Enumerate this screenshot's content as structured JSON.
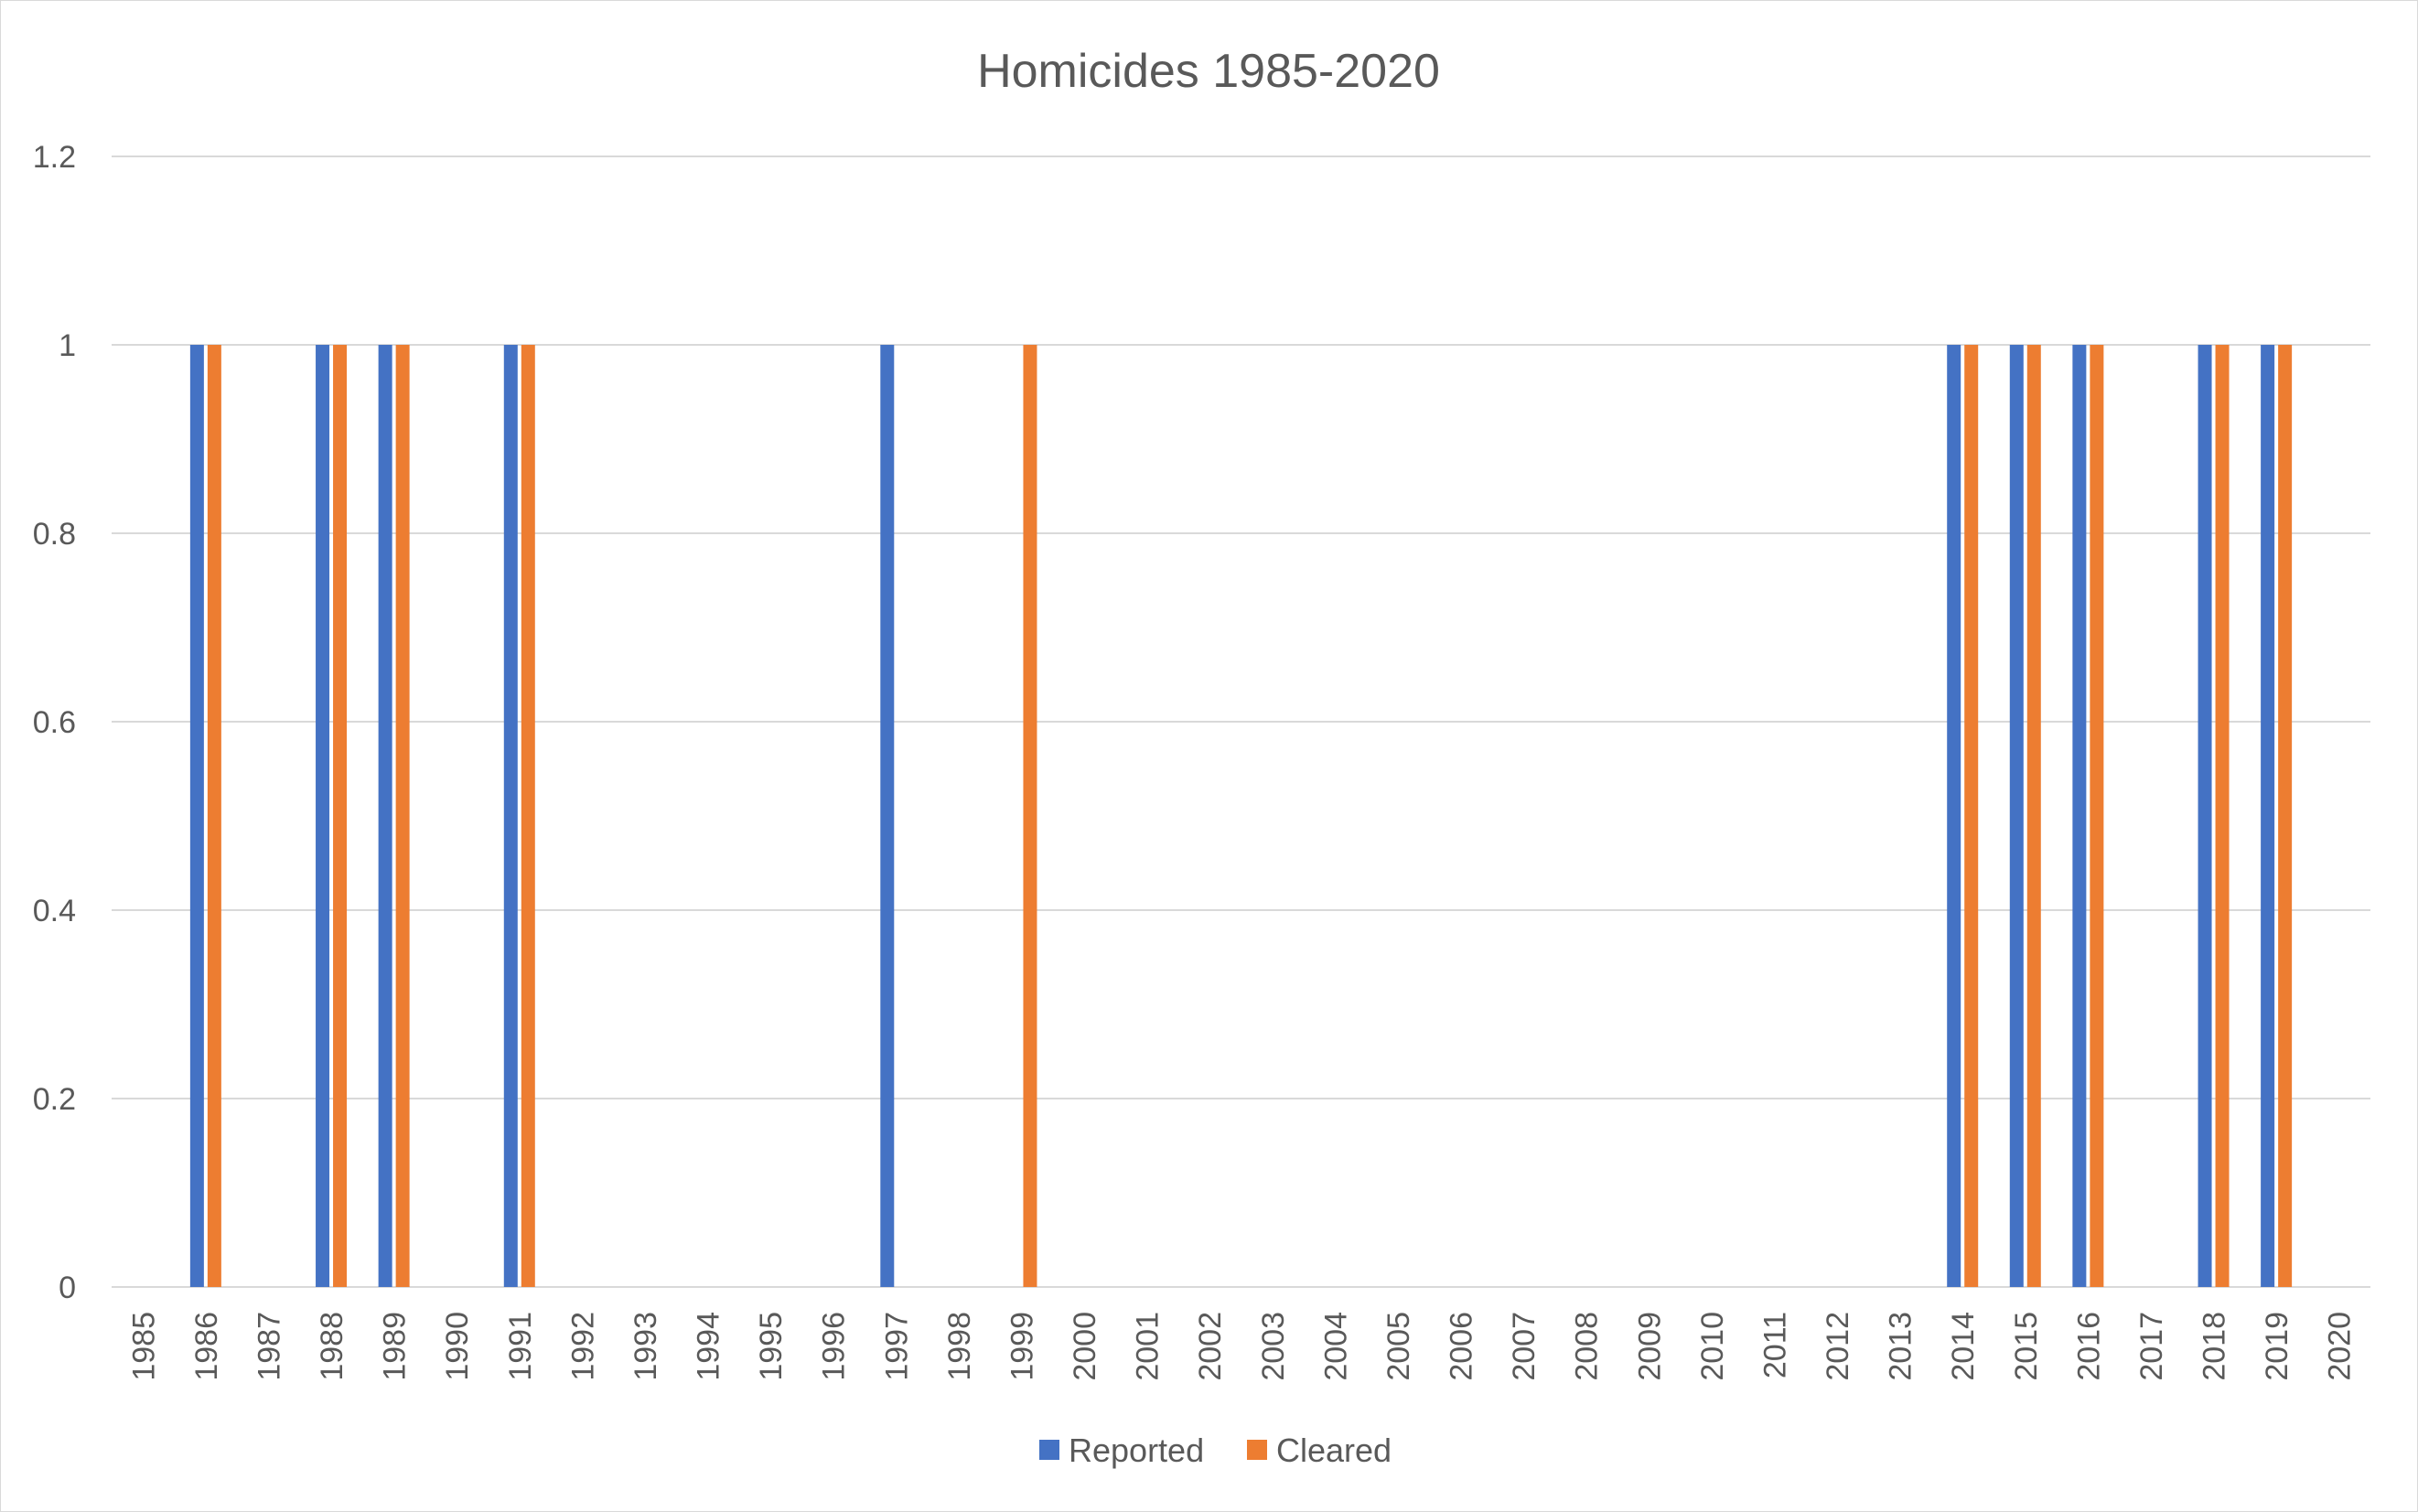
{
  "chart_data": {
    "type": "bar",
    "title": "Homicides 1985-2020",
    "xlabel": "",
    "ylabel": "",
    "categories": [
      "1985",
      "1986",
      "1987",
      "1988",
      "1989",
      "1990",
      "1991",
      "1992",
      "1993",
      "1994",
      "1995",
      "1996",
      "1997",
      "1998",
      "1999",
      "2000",
      "2001",
      "2002",
      "2003",
      "2004",
      "2005",
      "2006",
      "2007",
      "2008",
      "2009",
      "2010",
      "2011",
      "2012",
      "2013",
      "2014",
      "2015",
      "2016",
      "2017",
      "2018",
      "2019",
      "2020"
    ],
    "series": [
      {
        "name": "Reported",
        "color": "#4472C4",
        "values": [
          0,
          1,
          0,
          1,
          1,
          0,
          1,
          0,
          0,
          0,
          0,
          0,
          1,
          0,
          0,
          0,
          0,
          0,
          0,
          0,
          0,
          0,
          0,
          0,
          0,
          0,
          0,
          0,
          0,
          1,
          1,
          1,
          0,
          1,
          1,
          0
        ]
      },
      {
        "name": "Cleared",
        "color": "#ED7D31",
        "values": [
          0,
          1,
          0,
          1,
          1,
          0,
          1,
          0,
          0,
          0,
          0,
          0,
          0,
          0,
          1,
          0,
          0,
          0,
          0,
          0,
          0,
          0,
          0,
          0,
          0,
          0,
          0,
          0,
          0,
          1,
          1,
          1,
          0,
          1,
          1,
          0
        ]
      }
    ],
    "ylim": [
      0,
      1.2
    ],
    "yticks": [
      "0",
      "0.2",
      "0.4",
      "0.6",
      "0.8",
      "1",
      "1.2"
    ],
    "grid": true,
    "legend_position": "bottom"
  }
}
